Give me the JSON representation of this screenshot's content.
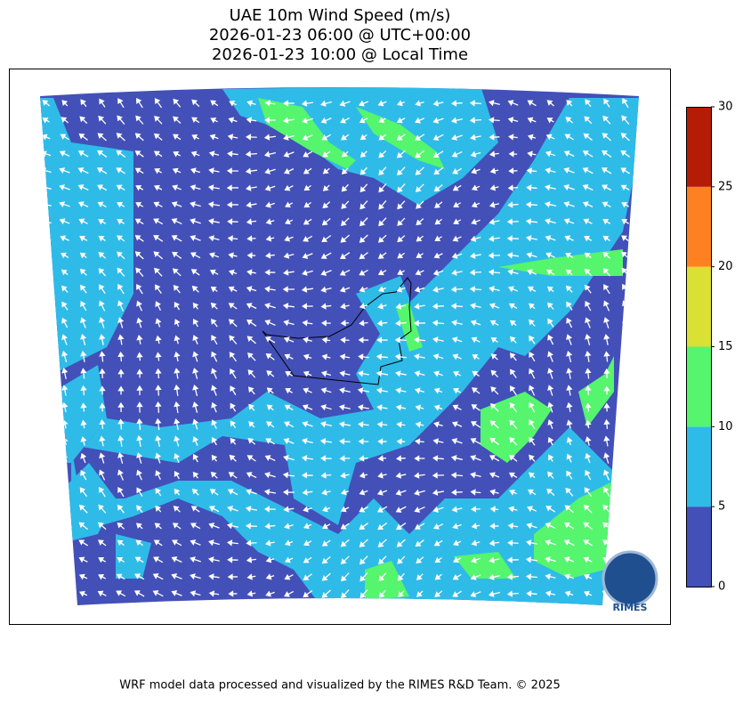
{
  "title": [
    "UAE 10m Wind Speed (m/s)",
    "2026-01-23 06:00 @ UTC+00:00",
    "2026-01-23 10:00 @ Local Time"
  ],
  "colorbar": {
    "lim": [
      0,
      30
    ],
    "ticks": [
      0,
      5,
      10,
      15,
      20,
      25,
      30
    ],
    "colors": [
      "#4350b8",
      "#2fbbe8",
      "#55f56d",
      "#dbe034",
      "#fd8120",
      "#b51c06"
    ]
  },
  "logo": "RIMES",
  "footer": "WRF model data processed and visualized by the RIMES R&D Team. © 2025"
}
